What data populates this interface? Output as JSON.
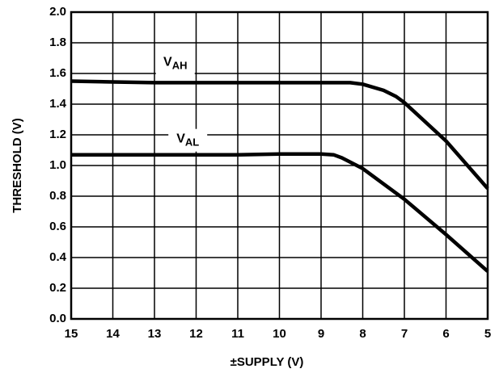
{
  "chart_data": {
    "type": "line",
    "x_label": "±SUPPLY (V)",
    "y_label": "THRESHOLD (V)",
    "xlim": [
      15,
      5
    ],
    "xticks": [
      15,
      14,
      13,
      12,
      11,
      10,
      9,
      8,
      7,
      6,
      5
    ],
    "ylim": [
      0,
      2
    ],
    "yticks": [
      {
        "value": 0,
        "label": "0.0"
      },
      {
        "value": 0.2,
        "label": "0.2"
      },
      {
        "value": 0.4,
        "label": "0.4"
      },
      {
        "value": 0.6,
        "label": "0.6"
      },
      {
        "value": 0.8,
        "label": "0.8"
      },
      {
        "value": 1.0,
        "label": "1.0"
      },
      {
        "value": 1.2,
        "label": "1.2"
      },
      {
        "value": 1.4,
        "label": "1.4"
      },
      {
        "value": 1.6,
        "label": "1.6"
      },
      {
        "value": 1.8,
        "label": "1.8"
      },
      {
        "value": 2.0,
        "label": "2.0"
      }
    ],
    "grid": true,
    "series": [
      {
        "name": "VAH",
        "color": "#000000",
        "x": [
          15,
          14,
          13,
          12,
          11,
          10,
          9,
          8.3,
          8,
          7.5,
          7.2,
          7,
          6,
          5
        ],
        "values": [
          1.55,
          1.545,
          1.54,
          1.54,
          1.54,
          1.54,
          1.54,
          1.54,
          1.53,
          1.49,
          1.45,
          1.41,
          1.16,
          0.85
        ]
      },
      {
        "name": "VAL",
        "color": "#000000",
        "x": [
          15,
          14,
          13,
          12,
          11,
          10,
          9,
          8.7,
          8.5,
          8,
          7,
          6,
          5
        ],
        "values": [
          1.07,
          1.07,
          1.07,
          1.07,
          1.07,
          1.075,
          1.075,
          1.07,
          1.05,
          0.98,
          0.78,
          0.55,
          0.31
        ]
      }
    ]
  }
}
